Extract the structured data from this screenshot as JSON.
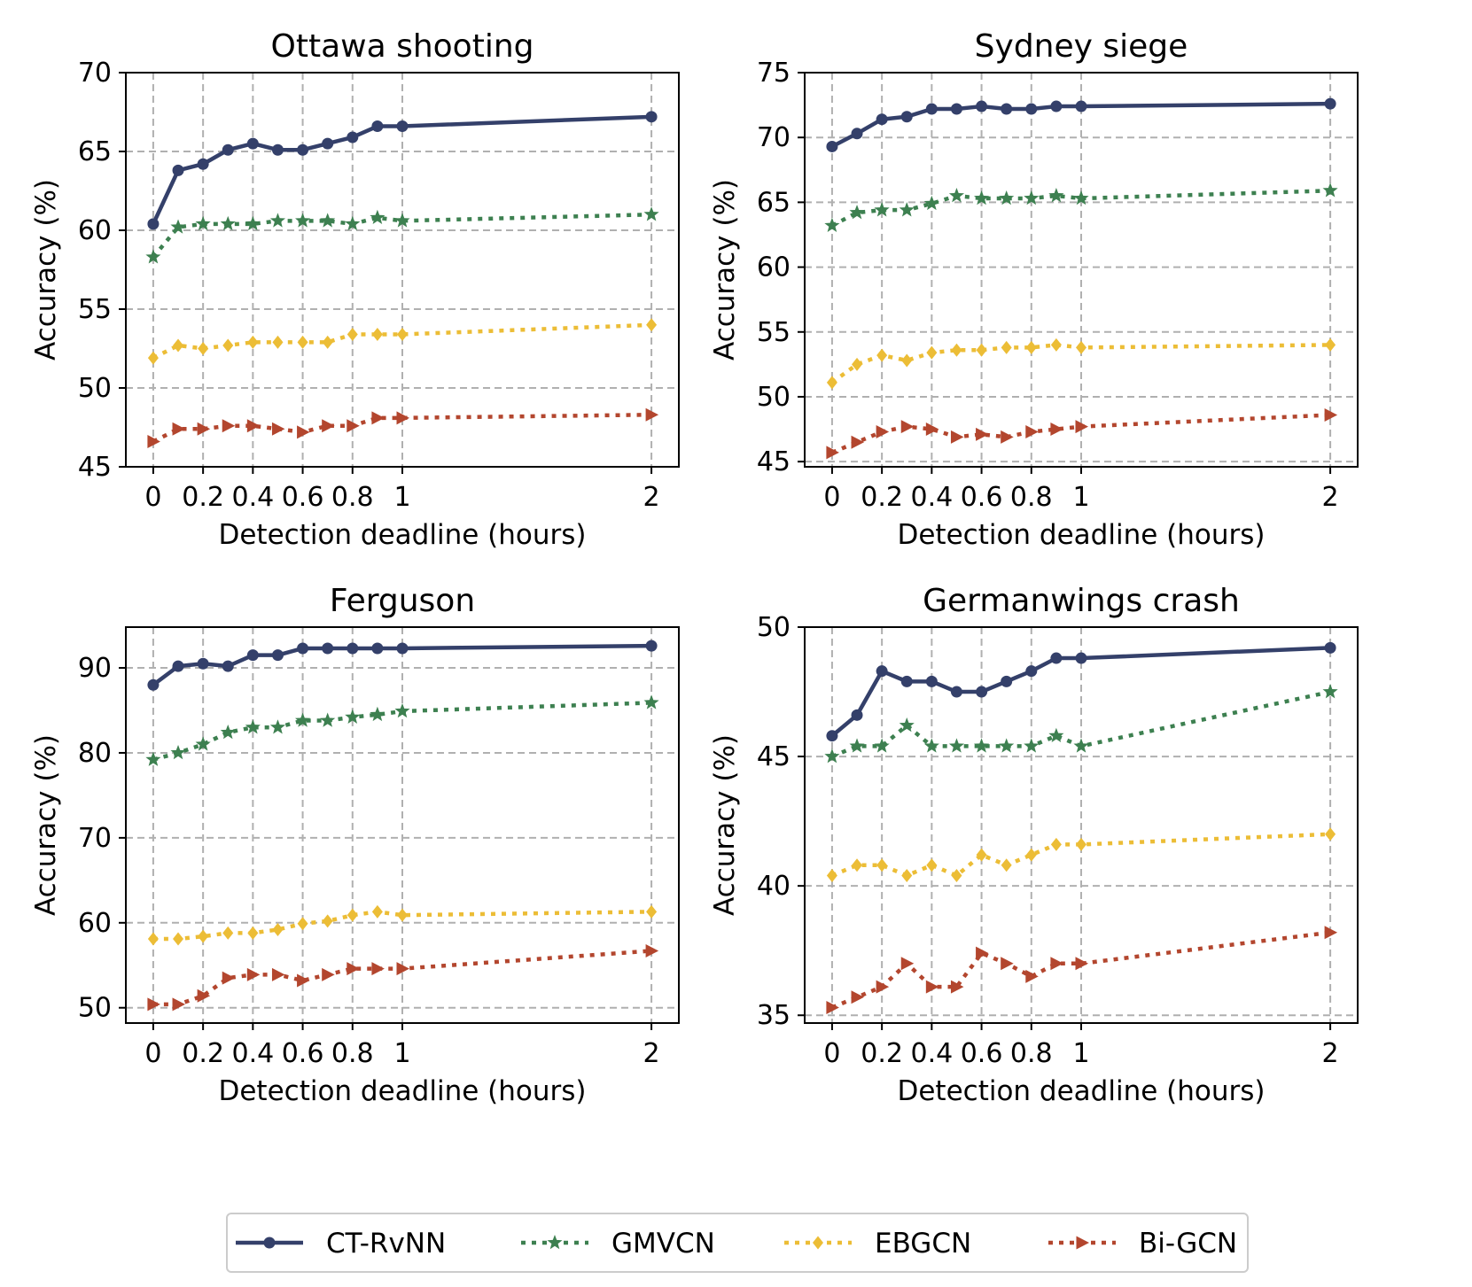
{
  "colors": {
    "CT-RvNN": "#34406a",
    "GMVCN": "#3d8050",
    "EBGCN": "#ecbd36",
    "Bi-GCN": "#b3462e",
    "grid": "#b0b0b0"
  },
  "legend": {
    "position": "bottom-center",
    "entries": [
      {
        "name": "CT-RvNN",
        "marker": "circle",
        "linestyle": "solid"
      },
      {
        "name": "GMVCN",
        "marker": "star",
        "linestyle": "dotted"
      },
      {
        "name": "EBGCN",
        "marker": "diamond",
        "linestyle": "dotted"
      },
      {
        "name": "Bi-GCN",
        "marker": "triangle-right",
        "linestyle": "dotted"
      }
    ]
  },
  "chart_data": [
    {
      "type": "line",
      "title": "Ottawa shooting",
      "xlabel": "Detection deadline (hours)",
      "ylabel": "Accuracy (%)",
      "x": [
        0,
        0.1,
        0.2,
        0.3,
        0.4,
        0.5,
        0.6,
        0.7,
        0.8,
        0.9,
        1,
        2
      ],
      "xticks": [
        0,
        0.2,
        0.4,
        0.6,
        0.8,
        1,
        2
      ],
      "xtick_labels": [
        "0",
        "0.2",
        "0.4",
        "0.6",
        "0.8",
        "1",
        "2"
      ],
      "xlim": [
        -0.11,
        2.11
      ],
      "yticks": [
        45,
        50,
        55,
        60,
        65,
        70
      ],
      "ylim": [
        45,
        70
      ],
      "grid": true,
      "series": [
        {
          "name": "CT-RvNN",
          "values": [
            60.4,
            63.8,
            64.2,
            65.1,
            65.5,
            65.1,
            65.1,
            65.5,
            65.9,
            66.6,
            66.6,
            67.2
          ]
        },
        {
          "name": "GMVCN",
          "values": [
            58.3,
            60.2,
            60.4,
            60.4,
            60.4,
            60.6,
            60.6,
            60.6,
            60.4,
            60.8,
            60.6,
            61.0
          ]
        },
        {
          "name": "EBGCN",
          "values": [
            51.9,
            52.7,
            52.5,
            52.7,
            52.9,
            52.9,
            52.9,
            52.9,
            53.4,
            53.4,
            53.4,
            54.0
          ]
        },
        {
          "name": "Bi-GCN",
          "values": [
            46.6,
            47.4,
            47.4,
            47.6,
            47.6,
            47.4,
            47.2,
            47.6,
            47.6,
            48.1,
            48.1,
            48.3
          ]
        }
      ]
    },
    {
      "type": "line",
      "title": "Sydney siege",
      "xlabel": "Detection deadline (hours)",
      "ylabel": "Accuracy (%)",
      "x": [
        0,
        0.1,
        0.2,
        0.3,
        0.4,
        0.5,
        0.6,
        0.7,
        0.8,
        0.9,
        1,
        2
      ],
      "xticks": [
        0,
        0.2,
        0.4,
        0.6,
        0.8,
        1,
        2
      ],
      "xtick_labels": [
        "0",
        "0.2",
        "0.4",
        "0.6",
        "0.8",
        "1",
        "2"
      ],
      "xlim": [
        -0.11,
        2.11
      ],
      "yticks": [
        45,
        50,
        55,
        60,
        65,
        70,
        75
      ],
      "ylim": [
        44.6,
        75
      ],
      "grid": true,
      "series": [
        {
          "name": "CT-RvNN",
          "values": [
            69.3,
            70.3,
            71.4,
            71.6,
            72.2,
            72.2,
            72.4,
            72.2,
            72.2,
            72.4,
            72.4,
            72.6
          ]
        },
        {
          "name": "GMVCN",
          "values": [
            63.2,
            64.2,
            64.4,
            64.4,
            64.9,
            65.5,
            65.3,
            65.3,
            65.3,
            65.5,
            65.3,
            65.9
          ]
        },
        {
          "name": "EBGCN",
          "values": [
            51.1,
            52.5,
            53.2,
            52.8,
            53.4,
            53.6,
            53.6,
            53.8,
            53.8,
            54.0,
            53.8,
            54.0
          ]
        },
        {
          "name": "Bi-GCN",
          "values": [
            45.7,
            46.5,
            47.3,
            47.7,
            47.5,
            46.9,
            47.1,
            46.9,
            47.3,
            47.5,
            47.7,
            48.6
          ]
        }
      ]
    },
    {
      "type": "line",
      "title": "Ferguson",
      "xlabel": "Detection deadline (hours)",
      "ylabel": "Accuracy (%)",
      "x": [
        0,
        0.1,
        0.2,
        0.3,
        0.4,
        0.5,
        0.6,
        0.7,
        0.8,
        0.9,
        1,
        2
      ],
      "xticks": [
        0,
        0.2,
        0.4,
        0.6,
        0.8,
        1,
        2
      ],
      "xtick_labels": [
        "0",
        "0.2",
        "0.4",
        "0.6",
        "0.8",
        "1",
        "2"
      ],
      "xlim": [
        -0.11,
        2.11
      ],
      "yticks": [
        50,
        60,
        70,
        80,
        90
      ],
      "ylim": [
        48.2,
        94.8
      ],
      "grid": true,
      "series": [
        {
          "name": "CT-RvNN",
          "values": [
            88.0,
            90.2,
            90.5,
            90.2,
            91.5,
            91.5,
            92.3,
            92.3,
            92.3,
            92.3,
            92.3,
            92.6
          ]
        },
        {
          "name": "GMVCN",
          "values": [
            79.2,
            80.0,
            81.0,
            82.4,
            83.0,
            83.0,
            83.8,
            83.8,
            84.2,
            84.5,
            84.9,
            85.9
          ]
        },
        {
          "name": "EBGCN",
          "values": [
            58.1,
            58.1,
            58.4,
            58.8,
            58.8,
            59.2,
            59.9,
            60.2,
            60.9,
            61.3,
            60.9,
            61.3
          ]
        },
        {
          "name": "Bi-GCN",
          "values": [
            50.4,
            50.4,
            51.4,
            53.5,
            53.9,
            53.9,
            53.2,
            53.9,
            54.6,
            54.6,
            54.6,
            56.7
          ]
        }
      ]
    },
    {
      "type": "line",
      "title": "Germanwings crash",
      "xlabel": "Detection deadline (hours)",
      "ylabel": "Accuracy (%)",
      "x": [
        0,
        0.1,
        0.2,
        0.3,
        0.4,
        0.5,
        0.6,
        0.7,
        0.8,
        0.9,
        1,
        2
      ],
      "xticks": [
        0,
        0.2,
        0.4,
        0.6,
        0.8,
        1,
        2
      ],
      "xtick_labels": [
        "0",
        "0.2",
        "0.4",
        "0.6",
        "0.8",
        "1",
        "2"
      ],
      "xlim": [
        -0.11,
        2.11
      ],
      "yticks": [
        35,
        40,
        45,
        50
      ],
      "ylim": [
        34.7,
        50
      ],
      "grid": true,
      "series": [
        {
          "name": "CT-RvNN",
          "values": [
            45.8,
            46.6,
            48.3,
            47.9,
            47.9,
            47.5,
            47.5,
            47.9,
            48.3,
            48.8,
            48.8,
            49.2
          ]
        },
        {
          "name": "GMVCN",
          "values": [
            45.0,
            45.4,
            45.4,
            46.2,
            45.4,
            45.4,
            45.4,
            45.4,
            45.4,
            45.8,
            45.4,
            47.5
          ]
        },
        {
          "name": "EBGCN",
          "values": [
            40.4,
            40.8,
            40.8,
            40.4,
            40.8,
            40.4,
            41.2,
            40.8,
            41.2,
            41.6,
            41.6,
            42.0
          ]
        },
        {
          "name": "Bi-GCN",
          "values": [
            35.3,
            35.7,
            36.1,
            37.0,
            36.1,
            36.1,
            37.4,
            37.0,
            36.5,
            37.0,
            37.0,
            38.2
          ]
        }
      ]
    }
  ]
}
